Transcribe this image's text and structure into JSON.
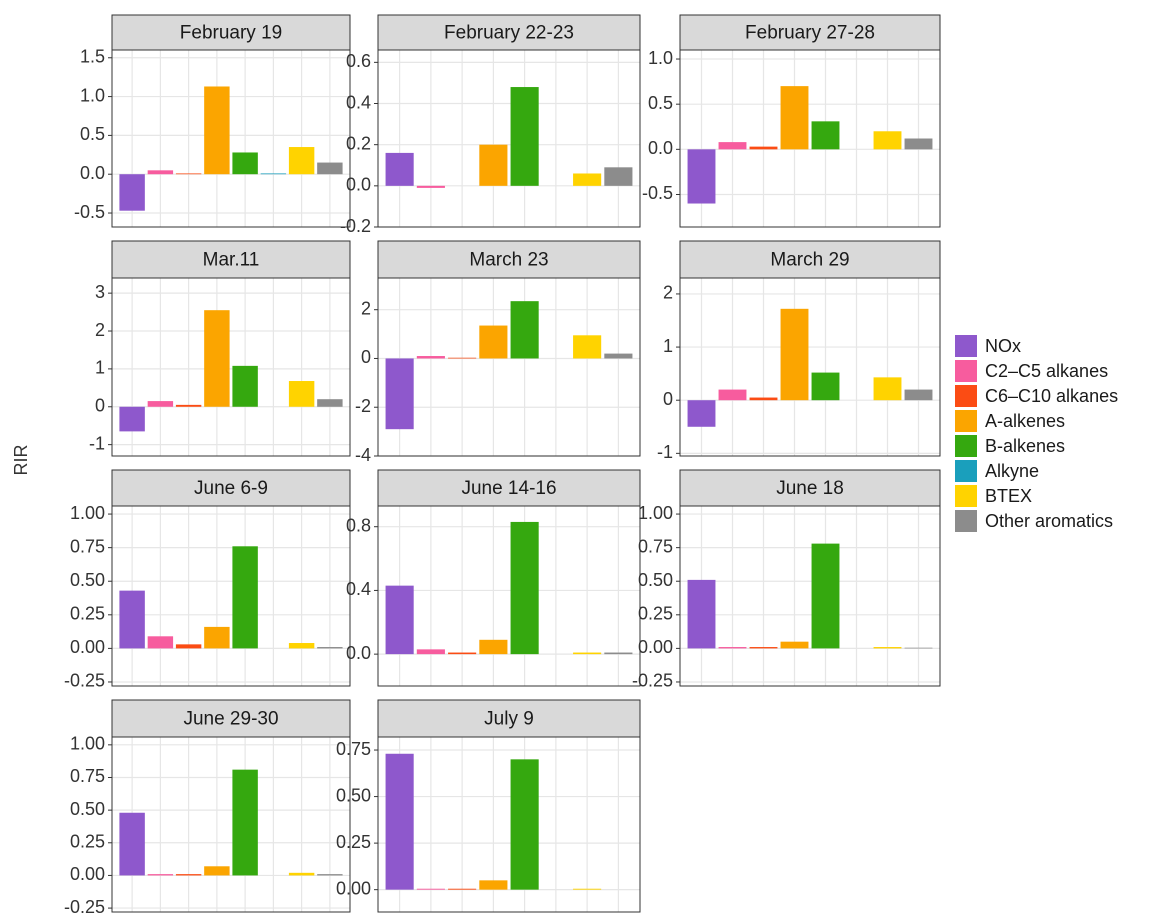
{
  "chart_data": {
    "type": "bar",
    "ylabel": "RIR",
    "grid": true,
    "series": [
      {
        "name": "NOx",
        "color": "#8e58cc"
      },
      {
        "name": "C2–C5 alkanes",
        "color": "#f75c9e"
      },
      {
        "name": "C6–C10 alkanes",
        "color": "#fb4c14"
      },
      {
        "name": "A-alkenes",
        "color": "#fba500"
      },
      {
        "name": "B-alkenes",
        "color": "#35a80f"
      },
      {
        "name": "Alkyne",
        "color": "#1a9fbc"
      },
      {
        "name": "BTEX",
        "color": "#ffd300"
      },
      {
        "name": "Other aromatics",
        "color": "#8c8c8c"
      }
    ],
    "panels": [
      {
        "title": "February 19",
        "values": [
          -0.47,
          0.05,
          0.01,
          1.13,
          0.28,
          0.01,
          0.35,
          0.15
        ],
        "ylim": [
          -0.68,
          1.6
        ],
        "yticks": [
          -0.5,
          {
            "value": 0,
            "label": "0.0"
          },
          0.5,
          {
            "value": 1,
            "label": "1.0"
          },
          1.5
        ]
      },
      {
        "title": "February 22-23",
        "values": [
          0.16,
          -0.01,
          0,
          0.2,
          0.48,
          0,
          0.06,
          0.09
        ],
        "ylim": [
          -0.2,
          0.66
        ],
        "yticks": [
          -0.2,
          {
            "value": 0,
            "label": "0.0"
          },
          0.2,
          0.4,
          0.6
        ]
      },
      {
        "title": "February 27-28",
        "values": [
          -0.6,
          0.08,
          0.03,
          0.7,
          0.31,
          0,
          0.2,
          0.12
        ],
        "ylim": [
          -0.86,
          1.1
        ],
        "yticks": [
          -0.5,
          {
            "value": 0,
            "label": "0.0"
          },
          0.5,
          {
            "value": 1,
            "label": "1.0"
          }
        ]
      },
      {
        "title": "Mar.11",
        "values": [
          -0.65,
          0.15,
          0.05,
          2.55,
          1.08,
          0,
          0.68,
          0.2
        ],
        "ylim": [
          -1.3,
          3.4
        ],
        "yticks": [
          -1,
          0,
          1,
          2,
          3
        ]
      },
      {
        "title": "March 23",
        "values": [
          -2.9,
          0.1,
          0.03,
          1.35,
          2.35,
          0,
          0.95,
          0.2
        ],
        "ylim": [
          -4,
          3.3
        ],
        "yticks": [
          -4,
          -2,
          0,
          2
        ]
      },
      {
        "title": "March 29",
        "values": [
          -0.5,
          0.2,
          0.05,
          1.72,
          0.52,
          0,
          0.43,
          0.2
        ],
        "ylim": [
          -1.05,
          2.3
        ],
        "yticks": [
          -1,
          0,
          1,
          2
        ]
      },
      {
        "title": "June 6-9",
        "values": [
          0.43,
          0.09,
          0.03,
          0.16,
          0.76,
          0,
          0.04,
          0.01
        ],
        "ylim": [
          -0.28,
          1.06
        ],
        "yticks": [
          -0.25,
          {
            "value": 0,
            "label": "0.00"
          },
          0.25,
          {
            "value": 0.5,
            "label": "0.50"
          },
          0.75,
          {
            "value": 1,
            "label": "1.00"
          }
        ]
      },
      {
        "title": "June 14-16",
        "values": [
          0.43,
          0.03,
          0.01,
          0.09,
          0.83,
          0,
          0.01,
          0.01
        ],
        "ylim": [
          -0.2,
          0.93
        ],
        "yticks": [
          {
            "value": 0,
            "label": "0.0"
          },
          0.4,
          0.8
        ]
      },
      {
        "title": "June 18",
        "values": [
          0.51,
          0.01,
          0.01,
          0.05,
          0.78,
          0,
          0.01,
          0.005
        ],
        "ylim": [
          -0.28,
          1.06
        ],
        "yticks": [
          -0.25,
          {
            "value": 0,
            "label": "0.00"
          },
          0.25,
          {
            "value": 0.5,
            "label": "0.50"
          },
          0.75,
          {
            "value": 1,
            "label": "1.00"
          }
        ]
      },
      {
        "title": "June 29-30",
        "values": [
          0.48,
          0.01,
          0.01,
          0.07,
          0.81,
          0,
          0.02,
          0.01
        ],
        "ylim": [
          -0.28,
          1.06
        ],
        "yticks": [
          -0.25,
          {
            "value": 0,
            "label": "0.00"
          },
          0.25,
          {
            "value": 0.5,
            "label": "0.50"
          },
          0.75,
          {
            "value": 1,
            "label": "1.00"
          }
        ]
      },
      {
        "title": "July 9",
        "values": [
          0.73,
          0.005,
          0.005,
          0.05,
          0.7,
          0,
          0.005,
          0
        ],
        "ylim": [
          -0.12,
          0.82
        ],
        "yticks": [
          {
            "value": 0,
            "label": "0.00"
          },
          0.25,
          {
            "value": 0.5,
            "label": "0.50"
          },
          0.75
        ]
      }
    ]
  }
}
